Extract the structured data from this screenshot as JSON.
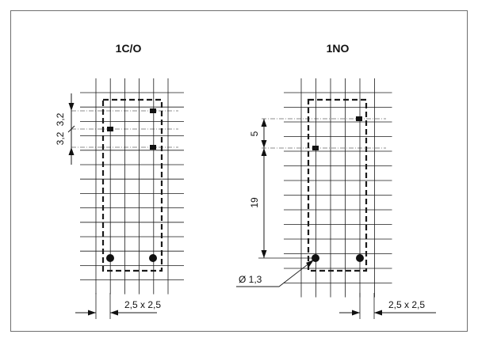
{
  "left_diagram": {
    "title": "1C/O",
    "dim_upper": "3,2",
    "dim_lower": "3,2",
    "pitch_label": "2,5 x 2,5"
  },
  "right_diagram": {
    "title": "1NO",
    "dim_upper": "5",
    "dim_lower": "19",
    "hole_label": "Ø 1,3",
    "pitch_label": "2,5 x 2,5"
  },
  "colors": {
    "line": "#1a1a1a",
    "frame": "#6f6f6f",
    "background": "#ffffff"
  }
}
